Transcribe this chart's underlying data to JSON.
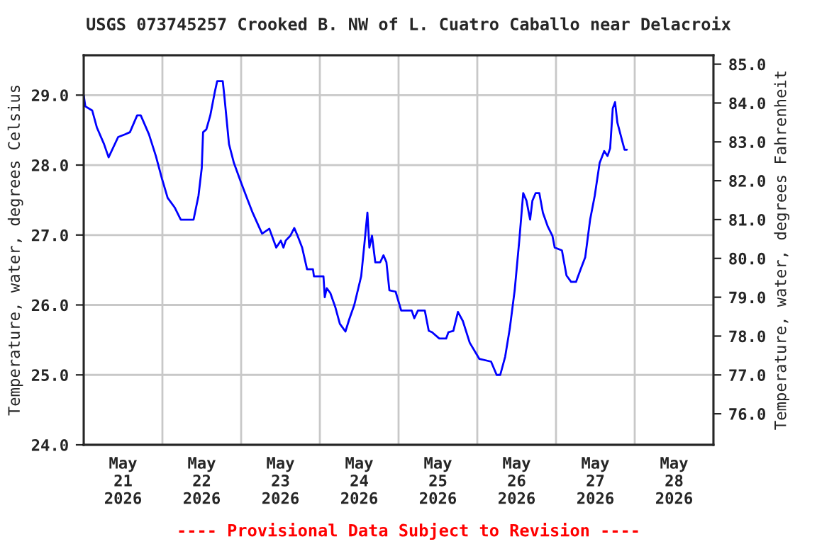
{
  "chart_data": {
    "type": "line",
    "title": "USGS 073745257 Crooked B. NW of L. Cuatro Caballo near Delacroix",
    "ylabel": "Temperature, water, degrees Celsius",
    "y2label": "Temperature, water, degrees Fahrenheit",
    "annotations": [
      "---- Provisional Data Subject to Revision ----"
    ],
    "xlim": [
      "2026-05-21",
      "2026-05-29"
    ],
    "xticks": [
      {
        "value": "2026-05-21",
        "label": null
      },
      {
        "value": "2026-05-21T12:00",
        "label": "May\n21\n2026"
      },
      {
        "value": "2026-05-22",
        "label": null
      },
      {
        "value": "2026-05-22T12:00",
        "label": "May\n22\n2026"
      },
      {
        "value": "2026-05-23",
        "label": null
      },
      {
        "value": "2026-05-23T12:00",
        "label": "May\n23\n2026"
      },
      {
        "value": "2026-05-24",
        "label": null
      },
      {
        "value": "2026-05-24T12:00",
        "label": "May\n24\n2026"
      },
      {
        "value": "2026-05-25",
        "label": null
      },
      {
        "value": "2026-05-25T12:00",
        "label": "May\n25\n2026"
      },
      {
        "value": "2026-05-26",
        "label": null
      },
      {
        "value": "2026-05-26T12:00",
        "label": "May\n26\n2026"
      },
      {
        "value": "2026-05-27",
        "label": null
      },
      {
        "value": "2026-05-27T12:00",
        "label": "May\n27\n2026"
      },
      {
        "value": "2026-05-28",
        "label": null
      },
      {
        "value": "2026-05-28T12:00",
        "label": "May\n28\n2026"
      },
      {
        "value": "2026-05-29",
        "label": null
      }
    ],
    "ylim": [
      24.0,
      29.57
    ],
    "yticks": [
      {
        "value": 24,
        "label": "24.0"
      },
      {
        "value": 25,
        "label": "25.0"
      },
      {
        "value": 26,
        "label": "26.0"
      },
      {
        "value": 27,
        "label": "27.0"
      },
      {
        "value": 28,
        "label": "28.0"
      },
      {
        "value": 29,
        "label": "29.0"
      }
    ],
    "y2lim": [
      75.2,
      85.23
    ],
    "y2ticks": [
      {
        "value": 76,
        "label": "76.0"
      },
      {
        "value": 77,
        "label": "77.0"
      },
      {
        "value": 78,
        "label": "78.0"
      },
      {
        "value": 79,
        "label": "79.0"
      },
      {
        "value": 80,
        "label": "80.0"
      },
      {
        "value": 81,
        "label": "81.0"
      },
      {
        "value": 82,
        "label": "82.0"
      },
      {
        "value": 83,
        "label": "83.0"
      },
      {
        "value": 84,
        "label": "84.0"
      },
      {
        "value": 85,
        "label": "85.0"
      }
    ],
    "grid": true,
    "legend": false,
    "series": [
      {
        "color": "#0000ff",
        "x": [
          "2026-05-21T00:00",
          "2026-05-21T00:30",
          "2026-05-21T02:36",
          "2026-05-21T04:00",
          "2026-05-21T06:12",
          "2026-05-21T07:36",
          "2026-05-21T10:30",
          "2026-05-21T12:42",
          "2026-05-21T14:06",
          "2026-05-21T16:18",
          "2026-05-21T17:24",
          "2026-05-21T19:54",
          "2026-05-21T22:00",
          "2026-05-21T23:54",
          "2026-05-22T01:36",
          "2026-05-22T03:48",
          "2026-05-22T05:36",
          "2026-05-22T09:30",
          "2026-05-22T11:00",
          "2026-05-22T12:00",
          "2026-05-22T12:24",
          "2026-05-22T13:24",
          "2026-05-22T14:36",
          "2026-05-22T16:00",
          "2026-05-22T16:42",
          "2026-05-22T18:24",
          "2026-05-22T18:54",
          "2026-05-22T20:18",
          "2026-05-22T21:48",
          "2026-05-22T23:54",
          "2026-05-23T02:06",
          "2026-05-23T03:30",
          "2026-05-23T05:42",
          "2026-05-23T06:24",
          "2026-05-23T08:36",
          "2026-05-23T10:42",
          "2026-05-23T12:06",
          "2026-05-23T12:54",
          "2026-05-23T13:36",
          "2026-05-23T15:00",
          "2026-05-23T16:12",
          "2026-05-23T17:12",
          "2026-05-23T18:36",
          "2026-05-23T20:06",
          "2026-05-23T21:54",
          "2026-05-23T22:12",
          "2026-05-24T01:06",
          "2026-05-24T01:30",
          "2026-05-24T02:06",
          "2026-05-24T03:12",
          "2026-05-24T04:42",
          "2026-05-24T06:06",
          "2026-05-24T07:48",
          "2026-05-24T09:00",
          "2026-05-24T10:30",
          "2026-05-24T12:36",
          "2026-05-24T13:36",
          "2026-05-24T14:30",
          "2026-05-24T15:06",
          "2026-05-24T15:54",
          "2026-05-24T16:54",
          "2026-05-24T18:24",
          "2026-05-24T19:24",
          "2026-05-24T20:18",
          "2026-05-24T21:12",
          "2026-05-24T23:06",
          "2026-05-25T00:48",
          "2026-05-25T04:00",
          "2026-05-25T04:48",
          "2026-05-25T05:54",
          "2026-05-25T08:00",
          "2026-05-25T09:12",
          "2026-05-25T10:12",
          "2026-05-25T12:24",
          "2026-05-25T14:30",
          "2026-05-25T15:12",
          "2026-05-25T16:42",
          "2026-05-25T18:06",
          "2026-05-25T19:36",
          "2026-05-25T21:42",
          "2026-05-26T00:36",
          "2026-05-26T04:12",
          "2026-05-26T05:54",
          "2026-05-26T07:00",
          "2026-05-26T08:30",
          "2026-05-26T09:54",
          "2026-05-26T11:24",
          "2026-05-26T12:48",
          "2026-05-26T14:00",
          "2026-05-26T15:00",
          "2026-05-26T16:06",
          "2026-05-26T16:48",
          "2026-05-26T17:48",
          "2026-05-26T18:54",
          "2026-05-26T20:00",
          "2026-05-26T21:30",
          "2026-05-26T22:54",
          "2026-05-26T23:36",
          "2026-05-27T01:48",
          "2026-05-27T03:12",
          "2026-05-27T04:36",
          "2026-05-27T06:06",
          "2026-05-27T07:30",
          "2026-05-27T08:54",
          "2026-05-27T10:24",
          "2026-05-27T11:48",
          "2026-05-27T13:18",
          "2026-05-27T14:42",
          "2026-05-27T15:42",
          "2026-05-27T16:30",
          "2026-05-27T17:18",
          "2026-05-27T18:00",
          "2026-05-27T18:42",
          "2026-05-27T20:12",
          "2026-05-27T20:54",
          "2026-05-27T21:36"
        ],
        "values": [
          29.0,
          28.84,
          28.78,
          28.54,
          28.3,
          28.11,
          28.4,
          28.44,
          28.47,
          28.71,
          28.71,
          28.44,
          28.13,
          27.8,
          27.53,
          27.39,
          27.22,
          27.22,
          27.56,
          27.96,
          28.47,
          28.51,
          28.71,
          29.05,
          29.2,
          29.2,
          28.98,
          28.3,
          28.03,
          27.76,
          27.49,
          27.32,
          27.09,
          27.02,
          27.09,
          26.82,
          26.92,
          26.82,
          26.92,
          26.99,
          27.1,
          26.99,
          26.82,
          26.51,
          26.51,
          26.41,
          26.41,
          26.11,
          26.24,
          26.17,
          25.97,
          25.73,
          25.62,
          25.8,
          26.0,
          26.41,
          26.88,
          27.32,
          26.82,
          26.99,
          26.61,
          26.61,
          26.71,
          26.61,
          26.21,
          26.19,
          25.92,
          25.92,
          25.81,
          25.92,
          25.92,
          25.63,
          25.61,
          25.52,
          25.52,
          25.61,
          25.63,
          25.9,
          25.77,
          25.46,
          25.23,
          25.19,
          25.0,
          25.0,
          25.26,
          25.66,
          26.21,
          26.92,
          27.6,
          27.49,
          27.22,
          27.49,
          27.6,
          27.6,
          27.32,
          27.12,
          26.99,
          26.82,
          26.78,
          26.42,
          26.33,
          26.33,
          26.51,
          26.68,
          27.22,
          27.56,
          28.03,
          28.2,
          28.13,
          28.24,
          28.81,
          28.9,
          28.61,
          28.34,
          28.22,
          28.22
        ]
      }
    ]
  }
}
